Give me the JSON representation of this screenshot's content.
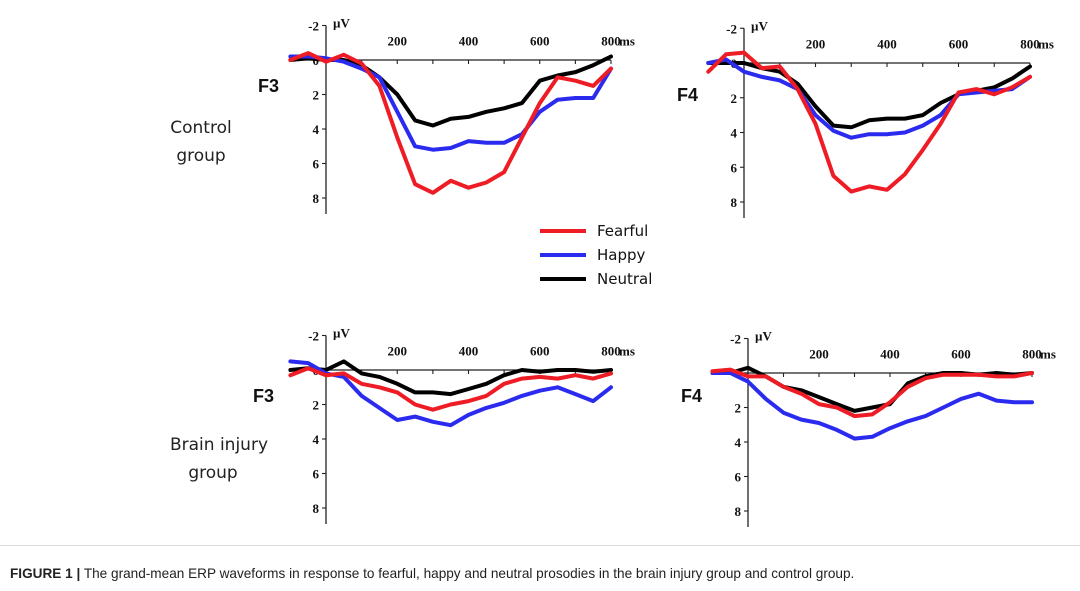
{
  "figure": {
    "caption_label": "FIGURE 1 |",
    "caption_text": "The grand-mean ERP waveforms in response to fearful, happy and neutral prosodies in the brain injury group and control group."
  },
  "legend": [
    {
      "name": "Fearful",
      "color": "#ee1c24"
    },
    {
      "name": "Happy",
      "color": "#2b2bf0"
    },
    {
      "name": "Neutral",
      "color": "#000000"
    }
  ],
  "groups": [
    {
      "label_lines": [
        "Control",
        "group"
      ]
    },
    {
      "label_lines": [
        "Brain injury",
        "group"
      ]
    }
  ],
  "chart_data": [
    {
      "type": "line",
      "group": "Control group",
      "electrode": "F3",
      "x_unit": "ms",
      "y_unit": "µV",
      "y_inverted": true,
      "xlim": [
        -100,
        800
      ],
      "ylim": [
        -2,
        8
      ],
      "x_ticks": [
        200,
        400,
        600,
        800
      ],
      "y_ticks": [
        -2,
        0,
        2,
        4,
        6,
        8
      ],
      "x": [
        -100,
        -50,
        0,
        50,
        100,
        150,
        200,
        250,
        300,
        350,
        400,
        450,
        500,
        550,
        600,
        650,
        700,
        750,
        800
      ],
      "series": [
        {
          "name": "Fearful",
          "values": [
            0,
            -0.4,
            0.1,
            -0.3,
            0.2,
            1.5,
            4.5,
            7.2,
            7.7,
            7.0,
            7.4,
            7.1,
            6.5,
            4.5,
            2.5,
            1.0,
            1.2,
            1.5,
            0.5
          ]
        },
        {
          "name": "Happy",
          "values": [
            -0.2,
            -0.2,
            -0.1,
            0.1,
            0.5,
            1.0,
            3.0,
            5.0,
            5.2,
            5.1,
            4.7,
            4.8,
            4.8,
            4.3,
            3.0,
            2.3,
            2.2,
            2.2,
            0.5
          ]
        },
        {
          "name": "Neutral",
          "values": [
            0,
            -0.1,
            0,
            0,
            0.3,
            1.0,
            2.0,
            3.5,
            3.8,
            3.4,
            3.3,
            3.0,
            2.8,
            2.5,
            1.2,
            0.9,
            0.7,
            0.3,
            -0.2
          ]
        }
      ]
    },
    {
      "type": "line",
      "group": "Control group",
      "electrode": "F4",
      "x_unit": "ms",
      "y_unit": "µV",
      "y_inverted": true,
      "xlim": [
        -100,
        800
      ],
      "ylim": [
        -2,
        8
      ],
      "x_ticks": [
        200,
        400,
        600,
        800
      ],
      "y_ticks": [
        -2,
        0,
        2,
        4,
        6,
        8
      ],
      "x": [
        -100,
        -50,
        0,
        50,
        100,
        150,
        200,
        250,
        300,
        350,
        400,
        450,
        500,
        550,
        600,
        650,
        700,
        750,
        800
      ],
      "series": [
        {
          "name": "Fearful",
          "values": [
            0.5,
            -0.5,
            -0.6,
            0.3,
            0.2,
            1.5,
            3.5,
            6.5,
            7.4,
            7.1,
            7.3,
            6.4,
            5.0,
            3.5,
            1.7,
            1.5,
            1.8,
            1.4,
            0.8
          ]
        },
        {
          "name": "Happy",
          "values": [
            0,
            -0.2,
            0.5,
            0.8,
            1.0,
            1.5,
            3.0,
            3.9,
            4.3,
            4.1,
            4.1,
            4.0,
            3.6,
            3.0,
            1.8,
            1.7,
            1.6,
            1.5,
            0.8
          ]
        },
        {
          "name": "Neutral",
          "values": [
            0,
            0,
            0,
            0.3,
            0.5,
            1.2,
            2.5,
            3.6,
            3.7,
            3.3,
            3.2,
            3.2,
            3.0,
            2.3,
            1.8,
            1.6,
            1.4,
            0.9,
            0.2
          ]
        }
      ]
    },
    {
      "type": "line",
      "group": "Brain injury group",
      "electrode": "F3",
      "x_unit": "ms",
      "y_unit": "µV",
      "y_inverted": true,
      "xlim": [
        -100,
        800
      ],
      "ylim": [
        -2,
        8
      ],
      "x_ticks": [
        200,
        400,
        600,
        800
      ],
      "y_ticks": [
        -2,
        0,
        2,
        4,
        6,
        8
      ],
      "x": [
        -100,
        -50,
        0,
        50,
        100,
        150,
        200,
        250,
        300,
        350,
        400,
        450,
        500,
        550,
        600,
        650,
        700,
        750,
        800
      ],
      "series": [
        {
          "name": "Fearful",
          "values": [
            0.3,
            -0.1,
            0.3,
            0.2,
            0.8,
            1.0,
            1.3,
            2.0,
            2.3,
            2.0,
            1.8,
            1.5,
            0.8,
            0.5,
            0.4,
            0.5,
            0.3,
            0.5,
            0.2
          ]
        },
        {
          "name": "Happy",
          "values": [
            -0.5,
            -0.4,
            0.2,
            0.4,
            1.5,
            2.2,
            2.9,
            2.7,
            3.0,
            3.2,
            2.6,
            2.2,
            1.9,
            1.5,
            1.2,
            1.0,
            1.4,
            1.8,
            1.0
          ]
        },
        {
          "name": "Neutral",
          "values": [
            0,
            -0.1,
            0,
            -0.5,
            0.2,
            0.4,
            0.8,
            1.3,
            1.3,
            1.4,
            1.1,
            0.8,
            0.3,
            0,
            0.1,
            0,
            0,
            0.1,
            0
          ]
        }
      ]
    },
    {
      "type": "line",
      "group": "Brain injury group",
      "electrode": "F4",
      "x_unit": "ms",
      "y_unit": "µV",
      "y_inverted": true,
      "xlim": [
        -100,
        800
      ],
      "ylim": [
        -2,
        8
      ],
      "x_ticks": [
        200,
        400,
        600,
        800
      ],
      "y_ticks": [
        -2,
        0,
        2,
        4,
        6,
        8
      ],
      "x": [
        -100,
        -50,
        0,
        50,
        100,
        150,
        200,
        250,
        300,
        350,
        400,
        450,
        500,
        550,
        600,
        650,
        700,
        750,
        800
      ],
      "series": [
        {
          "name": "Fearful",
          "values": [
            -0.1,
            -0.2,
            0.2,
            0.2,
            0.8,
            1.2,
            1.8,
            2.0,
            2.5,
            2.4,
            1.7,
            0.8,
            0.3,
            0.1,
            0.1,
            0.1,
            0.2,
            0.2,
            0
          ]
        },
        {
          "name": "Happy",
          "values": [
            0,
            0,
            0.5,
            1.5,
            2.3,
            2.7,
            2.9,
            3.3,
            3.8,
            3.7,
            3.2,
            2.8,
            2.5,
            2.0,
            1.5,
            1.2,
            1.6,
            1.7,
            1.7
          ]
        },
        {
          "name": "Neutral",
          "values": [
            0,
            0,
            -0.3,
            0.2,
            0.8,
            1.0,
            1.4,
            1.8,
            2.2,
            2.0,
            1.8,
            0.6,
            0.2,
            0,
            0,
            0.1,
            0,
            0.1,
            0
          ]
        }
      ]
    }
  ]
}
